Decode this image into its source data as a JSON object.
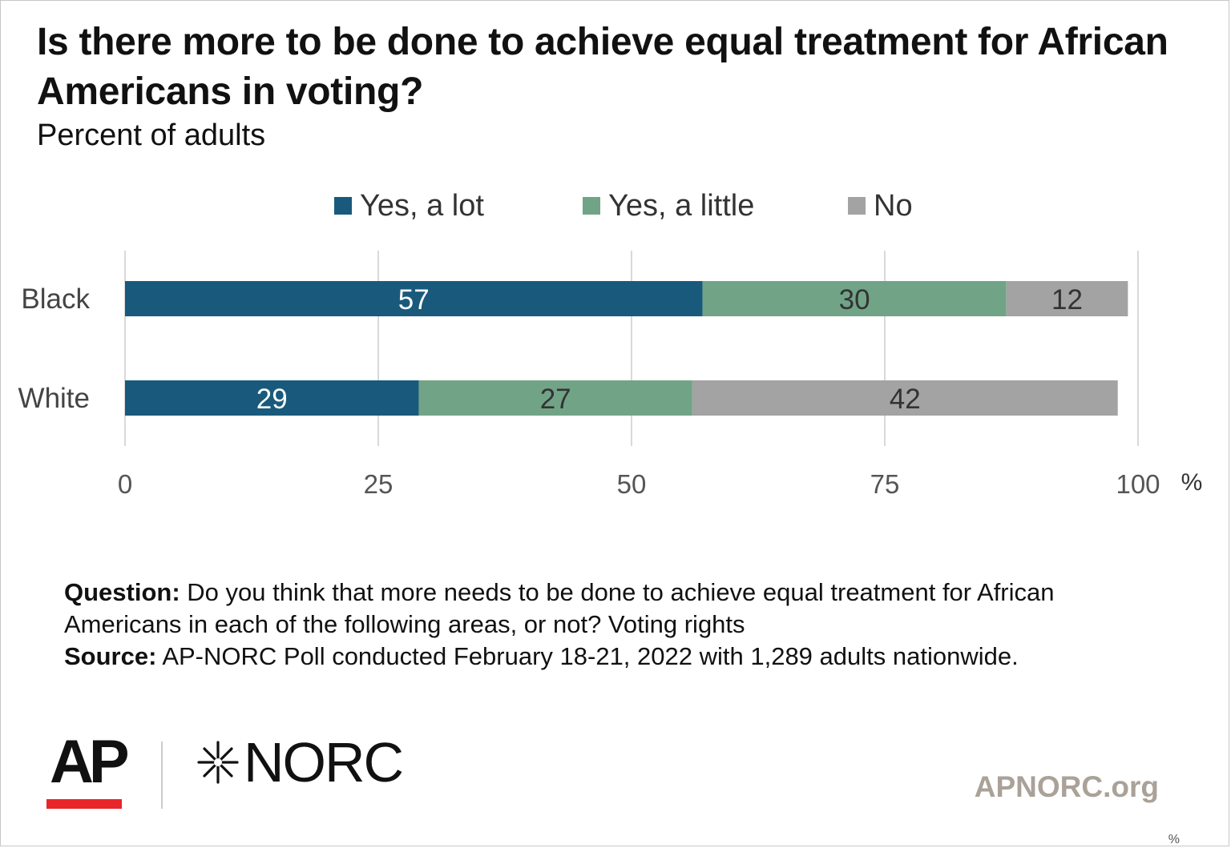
{
  "header": {
    "title": "Is there more to be done to achieve equal treatment for African Americans in voting?",
    "subtitle": "Percent of adults"
  },
  "chart_data": {
    "type": "bar",
    "orientation": "horizontal",
    "stacked": true,
    "categories": [
      "Black",
      "White"
    ],
    "series": [
      {
        "name": "Yes, a lot",
        "color": "#195a7c",
        "label_color": "#ffffff",
        "values": [
          57,
          29
        ]
      },
      {
        "name": "Yes, a little",
        "color": "#71a487",
        "label_color": "#333333",
        "values": [
          30,
          27
        ]
      },
      {
        "name": "No",
        "color": "#a3a3a3",
        "label_color": "#333333",
        "values": [
          12,
          42
        ]
      }
    ],
    "x_ticks": [
      "0",
      "25",
      "50",
      "75",
      "100"
    ],
    "x_unit": "%",
    "xlim": [
      0,
      100
    ],
    "grid": true,
    "legend_position": "top"
  },
  "notes": {
    "question_label": "Question:",
    "question_text": " Do you think that more needs to be done to achieve equal treatment for African Americans in each of the following areas, or not? Voting rights",
    "source_label": "Source:",
    "source_text": " AP-NORC Poll conducted February 18-21, 2022 with 1,289 adults nationwide."
  },
  "footer": {
    "ap_logo": "AP",
    "norc_logo": "NORC",
    "site": "APNORC.org",
    "corner_mark": "%"
  }
}
